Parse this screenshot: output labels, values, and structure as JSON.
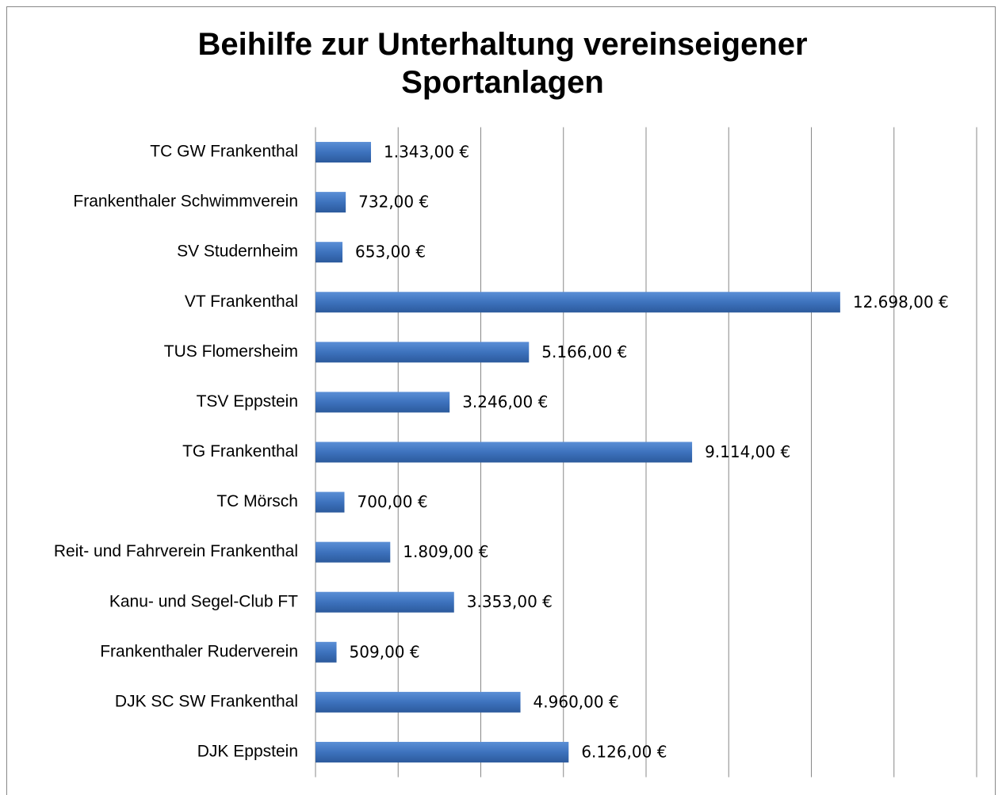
{
  "chart_data": {
    "type": "barh",
    "title": "Beihilfe zur Unterhaltung vereinseigener Sportanlagen",
    "categories": [
      "TC GW Frankenthal",
      "Frankenthaler Schwimmverein",
      "SV Studernheim",
      "VT Frankenthal",
      "TUS Flomersheim",
      "TSV Eppstein",
      "TG Frankenthal",
      "TC Mörsch",
      "Reit- und Fahrverein Frankenthal",
      "Kanu- und Segel-Club FT",
      "Frankenthaler Ruderverein",
      "DJK SC SW Frankenthal",
      "DJK Eppstein"
    ],
    "values": [
      1343,
      732,
      653,
      12698,
      5166,
      3246,
      9114,
      700,
      1809,
      3353,
      509,
      4960,
      6126
    ],
    "value_labels": [
      "1.343,00 €",
      "732,00 €",
      "653,00 €",
      "12.698,00 €",
      "5.166,00 €",
      "3.246,00 €",
      "9.114,00 €",
      "700,00 €",
      "1.809,00 €",
      "3.353,00 €",
      "509,00 €",
      "4.960,00 €",
      "6.126,00 €"
    ],
    "color": "#3d72bd",
    "xlim": [
      0,
      16000
    ],
    "xticks": [
      0,
      2000,
      4000,
      6000,
      8000,
      10000,
      12000,
      14000,
      16000
    ],
    "grid": true
  }
}
